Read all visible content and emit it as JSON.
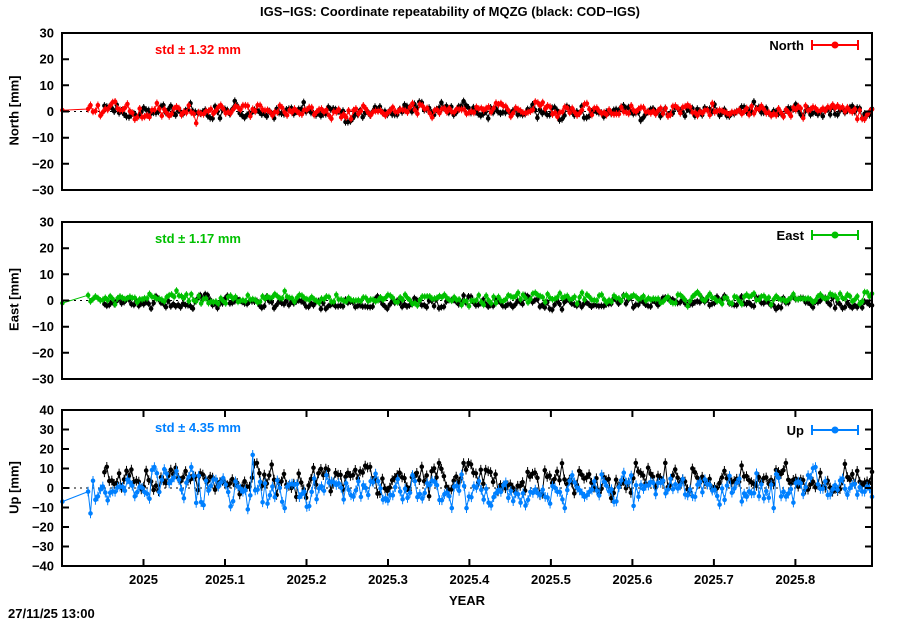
{
  "title": "IGS−IGS: Coordinate repeatability of MQZG (black: COD−IGS)",
  "timestamp": "27/11/25 13:00",
  "chart_data": {
    "type": "scatter",
    "xlabel": "YEAR",
    "x_range": [
      2024.9,
      2025.894
    ],
    "x_tick_values": [
      2025,
      2025.1,
      2025.2,
      2025.3,
      2025.4,
      2025.5,
      2025.6,
      2025.7,
      2025.8
    ],
    "x_tick_labels": [
      "2025",
      "2025.1",
      "2025.2",
      "2025.3",
      "2025.4",
      "2025.5",
      "2025.6",
      "2025.7",
      "2025.8"
    ],
    "n_points": 320,
    "seed": 20251127,
    "cluster_start": 2024.932,
    "black_start": 2024.952,
    "grid": false,
    "legend_position": "top-right-inside",
    "panels": [
      {
        "name": "North",
        "ylabel": "North [mm]",
        "ylim": [
          -30,
          30
        ],
        "y_tick_step": 10,
        "y_tick_labels": [
          "30",
          "20",
          "10",
          "0",
          "−10",
          "−20",
          "−30"
        ],
        "std_label": "std ± 1.32 mm",
        "std_mm": 1.32,
        "legend_label": "North",
        "accent_color": "#ff0000",
        "zero_line_dotted": true,
        "error_bar_mm": 1.4,
        "series": [
          {
            "name": "COD−IGS",
            "color": "#000000",
            "mean": 0.0,
            "std": 1.5,
            "clamp": 4.0,
            "edge_point": null,
            "outliers": []
          },
          {
            "name": "IGS−IGS",
            "color": "#ff0000",
            "mean": 0.4,
            "std": 1.25,
            "clamp": 3.4,
            "edge_point": 0.5,
            "outliers": [
              [
                2025.065,
                -4.5
              ]
            ]
          }
        ]
      },
      {
        "name": "East",
        "ylabel": "East [mm]",
        "ylim": [
          -30,
          30
        ],
        "y_tick_step": 10,
        "y_tick_labels": [
          "30",
          "20",
          "10",
          "0",
          "−10",
          "−20",
          "−30"
        ],
        "std_label": "std ± 1.17 mm",
        "std_mm": 1.17,
        "legend_label": "East",
        "accent_color": "#00c000",
        "zero_line_dotted": true,
        "error_bar_mm": 1.3,
        "series": [
          {
            "name": "COD−IGS",
            "color": "#000000",
            "mean": -0.8,
            "std": 1.2,
            "clamp": 3.2,
            "edge_point": null,
            "outliers": []
          },
          {
            "name": "IGS−IGS",
            "color": "#00c000",
            "mean": 0.8,
            "std": 1.1,
            "clamp": 3.0,
            "edge_point": -1.0,
            "outliers": []
          }
        ]
      },
      {
        "name": "Up",
        "ylabel": "Up [mm]",
        "ylim": [
          -40,
          40
        ],
        "y_tick_step": 10,
        "y_tick_labels": [
          "40",
          "30",
          "20",
          "10",
          "0",
          "−10",
          "−20",
          "−30",
          "−40"
        ],
        "std_label": "std ± 4.35 mm",
        "std_mm": 4.35,
        "legend_label": "Up",
        "accent_color": "#0080ff",
        "zero_line_dotted": true,
        "error_bar_mm": 2.5,
        "series": [
          {
            "name": "COD−IGS",
            "color": "#000000",
            "mean": 3.8,
            "std": 3.6,
            "clamp": 9.0,
            "edge_point": null,
            "outliers": []
          },
          {
            "name": "IGS−IGS",
            "color": "#0080ff",
            "mean": 0.2,
            "std": 4.2,
            "clamp": 10.5,
            "edge_point": -7.0,
            "outliers": [
              [
                2024.936,
                -13
              ],
              [
                2025.128,
                -11
              ],
              [
                2025.135,
                17
              ],
              [
                2025.152,
                -8
              ],
              [
                2025.47,
                -9
              ],
              [
                2025.5,
                -8
              ]
            ]
          }
        ]
      }
    ]
  }
}
